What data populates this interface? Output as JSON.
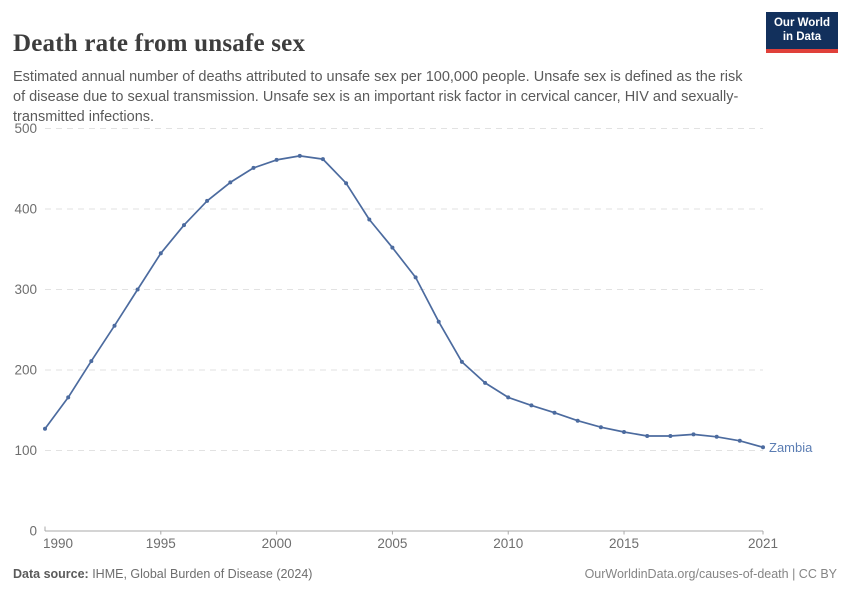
{
  "header": {
    "title": "Death rate from unsafe sex",
    "subtitle": "Estimated annual number of deaths attributed to unsafe sex per 100,000 people. Unsafe sex is defined as the risk of disease due to sexual transmission. Unsafe sex is an important risk factor in cervical cancer, HIV and sexually-transmitted infections."
  },
  "logo": {
    "line1": "Our World",
    "line2": "in Data",
    "bg_color": "#12305c",
    "accent_color": "#e0403a"
  },
  "chart_data": {
    "type": "line",
    "title": "Death rate from unsafe sex",
    "entity_label": "Zambia",
    "x": [
      1990,
      1991,
      1992,
      1993,
      1994,
      1995,
      1996,
      1997,
      1998,
      1999,
      2000,
      2001,
      2002,
      2003,
      2004,
      2005,
      2006,
      2007,
      2008,
      2009,
      2010,
      2011,
      2012,
      2013,
      2014,
      2015,
      2016,
      2017,
      2018,
      2019,
      2020,
      2021
    ],
    "values": [
      127,
      166,
      211,
      255,
      300,
      345,
      380,
      410,
      433,
      451,
      461,
      466,
      462,
      432,
      387,
      352,
      315,
      260,
      210,
      184,
      166,
      156,
      147,
      137,
      129,
      123,
      118,
      118,
      120,
      117,
      112,
      104
    ],
    "xlabel": "",
    "ylabel": "",
    "ylim": [
      0,
      500
    ],
    "yticks": [
      0,
      100,
      200,
      300,
      400,
      500
    ],
    "xticks": [
      1990,
      1995,
      2000,
      2005,
      2010,
      2015,
      2021
    ],
    "grid": "horizontal-dashed",
    "legend_position": "end-of-line",
    "line_color": "#4c6b9f",
    "marker_color": "#4c6b9f",
    "entity_label_color": "#5b7db3",
    "axis_text_color": "#6e6e6e",
    "gridline_color": "#e2e2e2",
    "axis_line_color": "#a9a9a9"
  },
  "footer": {
    "source_label": "Data source:",
    "source_value": " IHME, Global Burden of Disease (2024)",
    "credit": "OurWorldinData.org/causes-of-death | CC BY"
  }
}
